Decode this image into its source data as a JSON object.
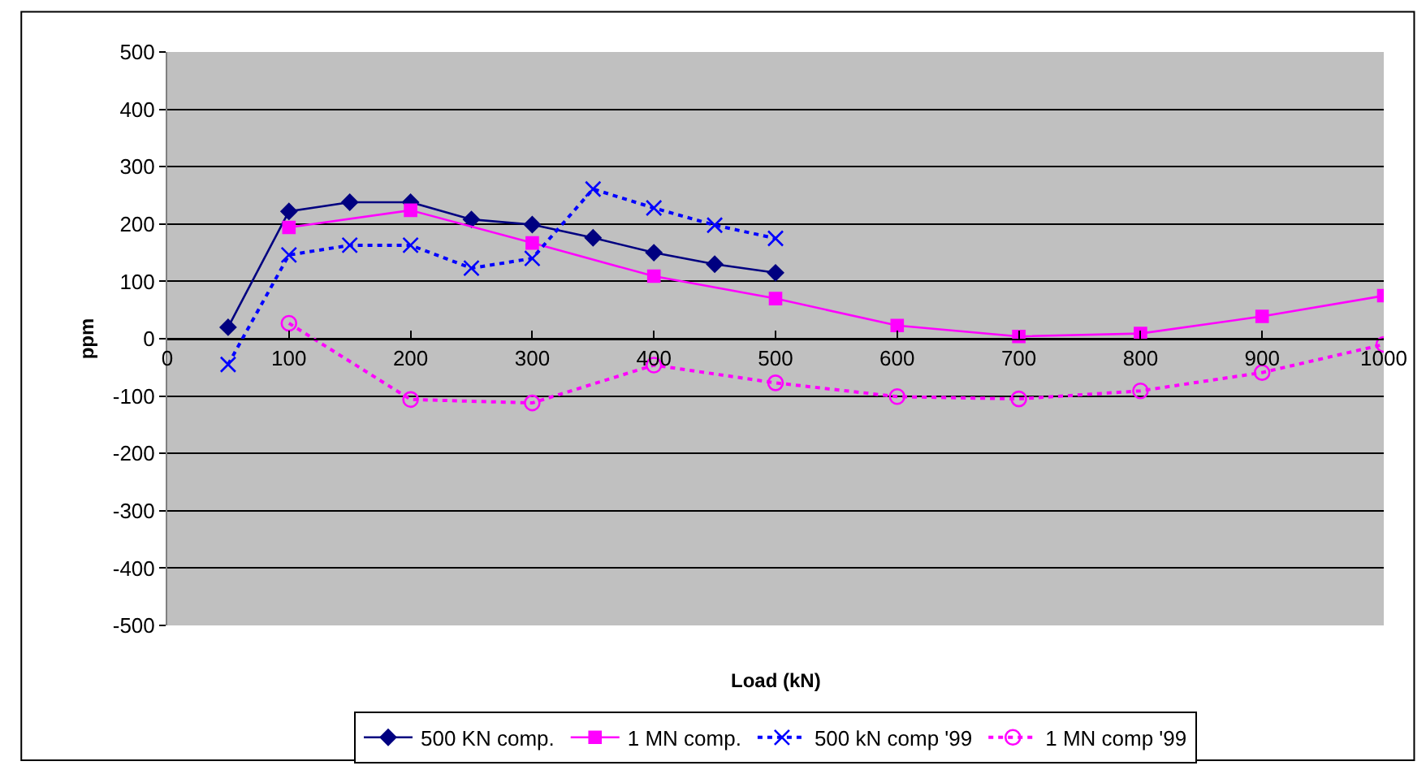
{
  "chart_data": {
    "type": "line",
    "xlabel": "Load (kN)",
    "ylabel": "ppm",
    "xlim": [
      0,
      1000
    ],
    "xticks": [
      0,
      100,
      200,
      300,
      400,
      500,
      600,
      700,
      800,
      900,
      1000
    ],
    "ylim": [
      -500,
      500
    ],
    "yticks": [
      -500,
      -400,
      -300,
      -200,
      -100,
      0,
      100,
      200,
      300,
      400,
      500
    ],
    "grid": "y",
    "legend": "bottom",
    "series": [
      {
        "name": "500 KN comp.",
        "color": "#000080",
        "marker": "diamond",
        "line_style": "solid",
        "x": [
          50,
          100,
          150,
          200,
          250,
          300,
          350,
          400,
          450,
          500
        ],
        "values": [
          20,
          222,
          238,
          238,
          208,
          199,
          176,
          150,
          130,
          115
        ]
      },
      {
        "name": "1 MN comp.",
        "color": "#ff00ff",
        "marker": "square",
        "line_style": "solid",
        "x": [
          100,
          200,
          300,
          400,
          500,
          600,
          700,
          800,
          900,
          1000
        ],
        "values": [
          194,
          224,
          167,
          109,
          70,
          23,
          4,
          9,
          39,
          75
        ]
      },
      {
        "name": "500 kN comp '99",
        "color": "#0000ff",
        "marker": "cross",
        "line_style": "dotted",
        "x": [
          50,
          100,
          150,
          200,
          250,
          300,
          350,
          400,
          450,
          500
        ],
        "values": [
          -45,
          146,
          163,
          163,
          123,
          140,
          261,
          228,
          198,
          175
        ]
      },
      {
        "name": "1 MN comp '99",
        "color": "#ff00ff",
        "marker": "circle",
        "line_style": "dotted",
        "x": [
          100,
          200,
          300,
          400,
          500,
          600,
          700,
          800,
          900,
          1000
        ],
        "values": [
          27,
          -106,
          -112,
          -46,
          -77,
          -101,
          -105,
          -91,
          -59,
          -10
        ]
      }
    ]
  }
}
